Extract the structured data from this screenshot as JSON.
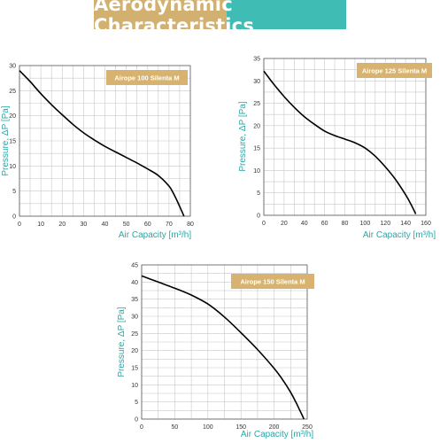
{
  "header": {
    "title": "Aerodynamic Characteristics",
    "colors": {
      "left": "#d2b070",
      "right": "#3fbcb3"
    }
  },
  "colors": {
    "axis_label": "#2aa6a6",
    "label_box_bg": "#d7b36f",
    "label_box_text": "#ffffff",
    "grid": "#c8c8c8",
    "frame": "#555555",
    "curve": "#000000",
    "tick_text": "#333333"
  },
  "chart_data": [
    {
      "type": "line",
      "label_box": "Airope 100 Silenta M",
      "xlabel": "Air Capacity [m³/h]",
      "ylabel": "Pressure, ΔP [Pa]",
      "xlim": [
        0,
        80
      ],
      "ylim": [
        0,
        30
      ],
      "xticks": [
        0,
        10,
        20,
        30,
        40,
        50,
        60,
        70,
        80
      ],
      "yticks": [
        0,
        5,
        10,
        15,
        20,
        25,
        30
      ],
      "series": [
        {
          "x": [
            0,
            5,
            10,
            15,
            20,
            25,
            30,
            35,
            40,
            45,
            50,
            55,
            60,
            65,
            70,
            72,
            74,
            76,
            77
          ],
          "y": [
            29,
            26.8,
            24.4,
            22.2,
            20.2,
            18.3,
            16.6,
            15.2,
            13.9,
            12.8,
            11.7,
            10.6,
            9.4,
            8.1,
            6.0,
            4.6,
            2.9,
            1.0,
            0
          ]
        }
      ]
    },
    {
      "type": "line",
      "label_box": "Airope 125 Silenta M",
      "xlabel": "Air Capacity [m³/h]",
      "ylabel": "Pressure, ΔP [Pa]",
      "xlim": [
        0,
        160
      ],
      "ylim": [
        0,
        35
      ],
      "xticks": [
        0,
        20,
        40,
        60,
        80,
        100,
        120,
        140,
        160
      ],
      "yticks": [
        0,
        5,
        10,
        15,
        20,
        25,
        30,
        35
      ],
      "series": [
        {
          "x": [
            0,
            10,
            20,
            30,
            40,
            50,
            60,
            70,
            80,
            90,
            100,
            110,
            120,
            130,
            140,
            145,
            150
          ],
          "y": [
            32.2,
            29.2,
            26.5,
            24.1,
            22.0,
            20.3,
            18.8,
            17.8,
            17.0,
            16.2,
            15.0,
            13.2,
            10.8,
            8.0,
            4.6,
            2.6,
            0.3
          ]
        }
      ]
    },
    {
      "type": "line",
      "label_box": "Airope 150 Silenta M",
      "xlabel": "Air Capacity [m³/h]",
      "ylabel": "Pressure, ΔP [Pa]",
      "xlim": [
        0,
        250
      ],
      "ylim": [
        0,
        45
      ],
      "xticks": [
        0,
        50,
        100,
        150,
        200,
        250
      ],
      "yticks": [
        0,
        5,
        10,
        15,
        20,
        25,
        30,
        35,
        40,
        45
      ],
      "series": [
        {
          "x": [
            0,
            25,
            50,
            75,
            100,
            125,
            150,
            175,
            200,
            215,
            225,
            232,
            238,
            242,
            245
          ],
          "y": [
            41.8,
            40.0,
            38.2,
            36.2,
            33.6,
            29.8,
            25.2,
            20.3,
            14.8,
            10.9,
            7.8,
            5.3,
            2.9,
            1.3,
            0
          ]
        }
      ]
    }
  ]
}
